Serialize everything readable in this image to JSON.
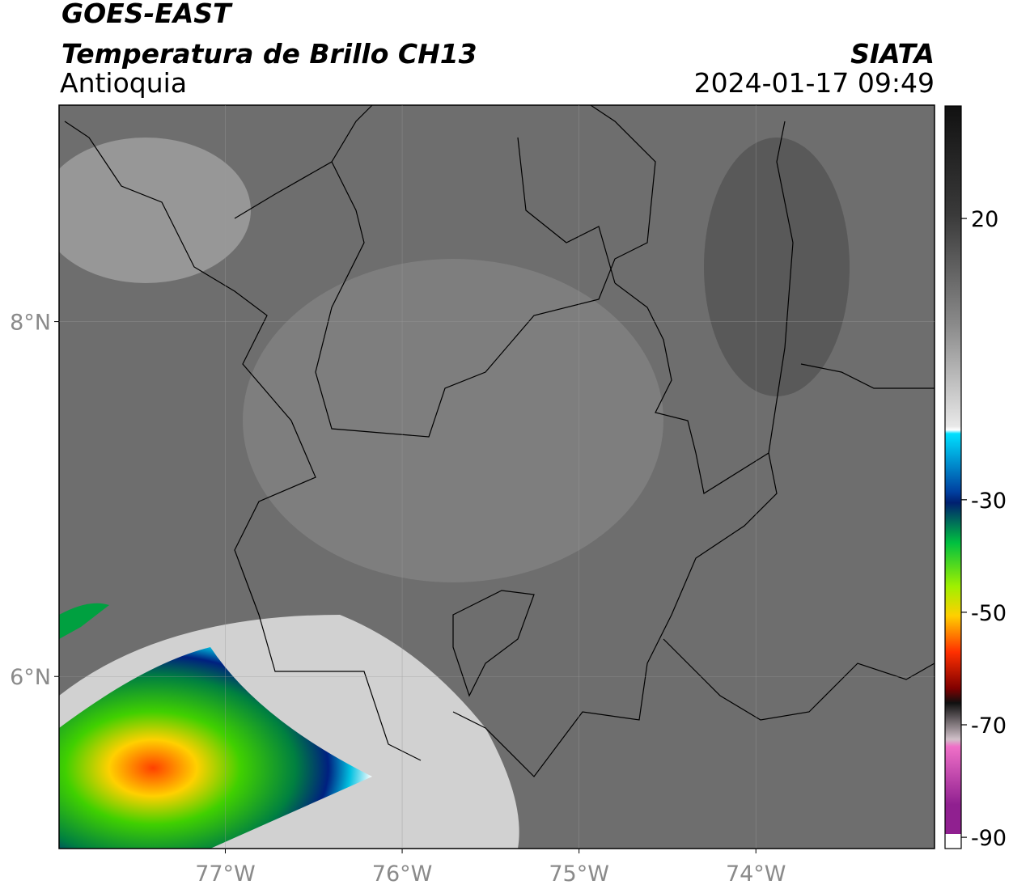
{
  "header": {
    "title": "GOES-EAST",
    "subtitle": "Temperatura de Brillo CH13",
    "region": "Antioquia",
    "source": "SIATA",
    "datetime": "2024-01-17 09:49"
  },
  "map": {
    "xlim": [
      -77.94,
      -72.99
    ],
    "ylim": [
      5.03,
      9.22
    ],
    "xticks": [
      {
        "value": -77,
        "label": "77°W"
      },
      {
        "value": -76,
        "label": "76°W"
      },
      {
        "value": -75,
        "label": "75°W"
      },
      {
        "value": -74,
        "label": "74°W"
      }
    ],
    "yticks": [
      {
        "value": 8,
        "label": "8°N"
      },
      {
        "value": 6,
        "label": "6°N"
      }
    ],
    "grid": true
  },
  "colorbar": {
    "lim": [
      -92,
      40
    ],
    "ticks": [
      20,
      -30,
      -50,
      -70,
      -90
    ]
  }
}
